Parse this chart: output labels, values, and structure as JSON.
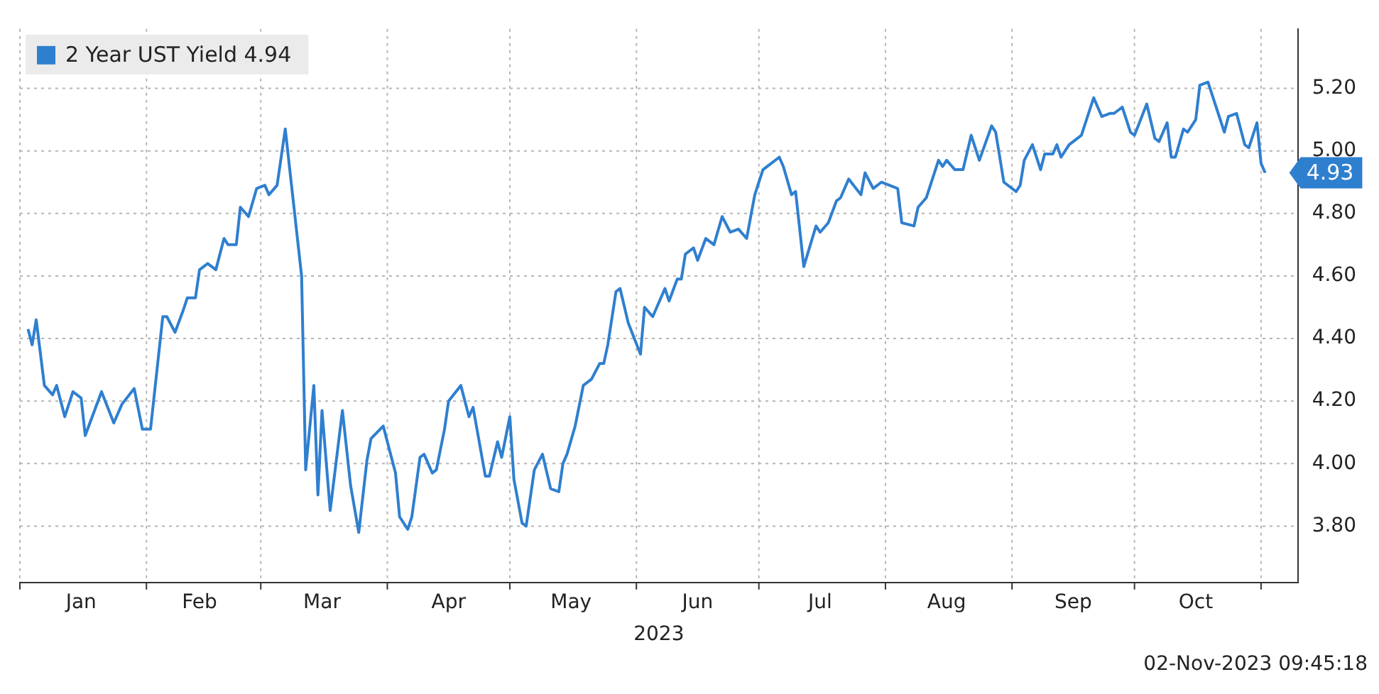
{
  "chart_data": {
    "type": "line",
    "xlabel": "2023",
    "x": [
      "2023-01-03",
      "2023-01-04",
      "2023-01-05",
      "2023-01-07",
      "2023-01-09",
      "2023-01-10",
      "2023-01-12",
      "2023-01-14",
      "2023-01-16",
      "2023-01-17",
      "2023-01-21",
      "2023-01-24",
      "2023-01-26",
      "2023-01-29",
      "2023-01-31",
      "2023-02-02",
      "2023-02-05",
      "2023-02-06",
      "2023-02-08",
      "2023-02-10",
      "2023-02-11",
      "2023-02-13",
      "2023-02-14",
      "2023-02-16",
      "2023-02-18",
      "2023-02-20",
      "2023-02-21",
      "2023-02-23",
      "2023-02-24",
      "2023-02-26",
      "2023-02-28",
      "2023-03-02",
      "2023-03-03",
      "2023-03-05",
      "2023-03-07",
      "2023-03-11",
      "2023-03-12",
      "2023-03-14",
      "2023-03-15",
      "2023-03-16",
      "2023-03-18",
      "2023-03-21",
      "2023-03-23",
      "2023-03-25",
      "2023-03-27",
      "2023-03-28",
      "2023-03-31",
      "2023-04-03",
      "2023-04-04",
      "2023-04-06",
      "2023-04-07",
      "2023-04-09",
      "2023-04-10",
      "2023-04-12",
      "2023-04-13",
      "2023-04-15",
      "2023-04-16",
      "2023-04-19",
      "2023-04-21",
      "2023-04-22",
      "2023-04-25",
      "2023-04-26",
      "2023-04-28",
      "2023-04-29",
      "2023-05-01",
      "2023-05-02",
      "2023-05-04",
      "2023-05-05",
      "2023-05-07",
      "2023-05-09",
      "2023-05-11",
      "2023-05-13",
      "2023-05-14",
      "2023-05-15",
      "2023-05-17",
      "2023-05-19",
      "2023-05-21",
      "2023-05-23",
      "2023-05-24",
      "2023-05-25",
      "2023-05-27",
      "2023-05-28",
      "2023-05-30",
      "2023-06-02",
      "2023-06-03",
      "2023-06-05",
      "2023-06-08",
      "2023-06-09",
      "2023-06-11",
      "2023-06-12",
      "2023-06-13",
      "2023-06-15",
      "2023-06-16",
      "2023-06-18",
      "2023-06-20",
      "2023-06-22",
      "2023-06-24",
      "2023-06-26",
      "2023-06-28",
      "2023-06-30",
      "2023-07-02",
      "2023-07-04",
      "2023-07-06",
      "2023-07-07",
      "2023-07-09",
      "2023-07-10",
      "2023-07-12",
      "2023-07-15",
      "2023-07-16",
      "2023-07-18",
      "2023-07-20",
      "2023-07-21",
      "2023-07-23",
      "2023-07-26",
      "2023-07-27",
      "2023-07-29",
      "2023-07-31",
      "2023-08-04",
      "2023-08-05",
      "2023-08-08",
      "2023-08-09",
      "2023-08-11",
      "2023-08-14",
      "2023-08-15",
      "2023-08-16",
      "2023-08-18",
      "2023-08-20",
      "2023-08-22",
      "2023-08-24",
      "2023-08-27",
      "2023-08-28",
      "2023-08-30",
      "2023-09-02",
      "2023-09-03",
      "2023-09-04",
      "2023-09-06",
      "2023-09-08",
      "2023-09-09",
      "2023-09-11",
      "2023-09-12",
      "2023-09-13",
      "2023-09-15",
      "2023-09-18",
      "2023-09-19",
      "2023-09-21",
      "2023-09-23",
      "2023-09-25",
      "2023-09-26",
      "2023-09-28",
      "2023-09-30",
      "2023-10-01",
      "2023-10-04",
      "2023-10-06",
      "2023-10-07",
      "2023-10-09",
      "2023-10-10",
      "2023-10-11",
      "2023-10-13",
      "2023-10-14",
      "2023-10-16",
      "2023-10-17",
      "2023-10-19",
      "2023-10-21",
      "2023-10-23",
      "2023-10-24",
      "2023-10-26",
      "2023-10-28",
      "2023-10-29",
      "2023-10-31",
      "2023-11-01",
      "2023-11-02"
    ],
    "series": [
      {
        "name": "2 Year UST Yield 4.94",
        "color": "#2f7fcf",
        "values": [
          4.43,
          4.38,
          4.46,
          4.25,
          4.22,
          4.25,
          4.15,
          4.23,
          4.21,
          4.09,
          4.23,
          4.13,
          4.19,
          4.24,
          4.11,
          4.11,
          4.47,
          4.47,
          4.42,
          4.49,
          4.53,
          4.53,
          4.62,
          4.64,
          4.62,
          4.72,
          4.7,
          4.7,
          4.82,
          4.79,
          4.88,
          4.89,
          4.86,
          4.89,
          5.07,
          4.6,
          3.98,
          4.25,
          3.9,
          4.17,
          3.85,
          4.17,
          3.93,
          3.78,
          4.01,
          4.08,
          4.12,
          3.97,
          3.83,
          3.79,
          3.83,
          4.02,
          4.03,
          3.97,
          3.98,
          4.11,
          4.2,
          4.25,
          4.15,
          4.18,
          3.96,
          3.96,
          4.07,
          4.02,
          4.15,
          3.95,
          3.81,
          3.8,
          3.98,
          4.03,
          3.92,
          3.91,
          4.0,
          4.03,
          4.12,
          4.25,
          4.27,
          4.32,
          4.32,
          4.38,
          4.55,
          4.56,
          4.45,
          4.35,
          4.5,
          4.47,
          4.56,
          4.52,
          4.59,
          4.59,
          4.67,
          4.69,
          4.65,
          4.72,
          4.7,
          4.79,
          4.74,
          4.75,
          4.72,
          4.86,
          4.94,
          4.96,
          4.98,
          4.95,
          4.86,
          4.87,
          4.63,
          4.76,
          4.74,
          4.77,
          4.84,
          4.85,
          4.91,
          4.86,
          4.93,
          4.88,
          4.9,
          4.88,
          4.77,
          4.76,
          4.82,
          4.85,
          4.97,
          4.95,
          4.97,
          4.94,
          4.94,
          5.05,
          4.97,
          5.08,
          5.06,
          4.9,
          4.87,
          4.89,
          4.97,
          5.02,
          4.94,
          4.99,
          4.99,
          5.02,
          4.98,
          5.02,
          5.05,
          5.09,
          5.17,
          5.11,
          5.12,
          5.12,
          5.14,
          5.06,
          5.05,
          5.15,
          5.04,
          5.03,
          5.09,
          4.98,
          4.98,
          5.07,
          5.06,
          5.1,
          5.21,
          5.22,
          5.14,
          5.06,
          5.11,
          5.12,
          5.02,
          5.01,
          5.09,
          4.96,
          4.93
        ]
      }
    ],
    "xlim": [
      "2023-01-01",
      "2023-11-10"
    ],
    "xticks": [
      {
        "value": "2023-01-01",
        "label": null
      },
      {
        "value": "2023-01-16",
        "label": "Jan"
      },
      {
        "value": "2023-02-01",
        "label": null
      },
      {
        "value": "2023-02-14",
        "label": "Feb"
      },
      {
        "value": "2023-03-01",
        "label": null
      },
      {
        "value": "2023-03-16",
        "label": "Mar"
      },
      {
        "value": "2023-04-01",
        "label": null
      },
      {
        "value": "2023-04-16",
        "label": "Apr"
      },
      {
        "value": "2023-05-01",
        "label": null
      },
      {
        "value": "2023-05-16",
        "label": "May"
      },
      {
        "value": "2023-06-01",
        "label": null
      },
      {
        "value": "2023-06-16",
        "label": "Jun"
      },
      {
        "value": "2023-07-01",
        "label": null
      },
      {
        "value": "2023-07-16",
        "label": "Jul"
      },
      {
        "value": "2023-08-01",
        "label": null
      },
      {
        "value": "2023-08-16",
        "label": "Aug"
      },
      {
        "value": "2023-09-01",
        "label": null
      },
      {
        "value": "2023-09-16",
        "label": "Sep"
      },
      {
        "value": "2023-10-01",
        "label": null
      },
      {
        "value": "2023-10-16",
        "label": "Oct"
      },
      {
        "value": "2023-11-01",
        "label": null
      }
    ],
    "ylim": [
      3.62,
      5.39
    ],
    "yticks": [
      {
        "value": 3.8,
        "label": "3.80"
      },
      {
        "value": 4.0,
        "label": "4.00"
      },
      {
        "value": 4.2,
        "label": "4.20"
      },
      {
        "value": 4.4,
        "label": "4.40"
      },
      {
        "value": 4.6,
        "label": "4.60"
      },
      {
        "value": 4.8,
        "label": "4.80"
      },
      {
        "value": 5.0,
        "label": "5.00"
      },
      {
        "value": 5.2,
        "label": "5.20"
      }
    ],
    "grid": true,
    "legend": "top left",
    "marker": "none",
    "line_style": "solid",
    "annotations": [
      {
        "text": "4.93",
        "x": "2023-11-02",
        "y": 4.93
      },
      "02-Nov-2023 09:45:18"
    ]
  }
}
